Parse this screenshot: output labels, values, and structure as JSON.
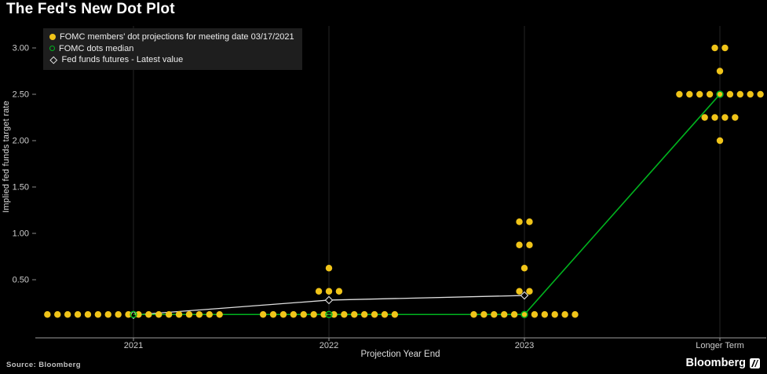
{
  "header": {
    "title": "The Fed's New Dot Plot"
  },
  "legend": [
    {
      "label": "FOMC members' dot projections for meeting date 03/17/2021",
      "marker": "filled-dot",
      "color": "#F0C419"
    },
    {
      "label": "FOMC dots median",
      "marker": "hollow-circle",
      "color": "#00B31E"
    },
    {
      "label": "Fed funds futures - Latest value",
      "marker": "hollow-diamond",
      "color": "#E0E0E0"
    }
  ],
  "axes": {
    "xlabel": "Projection Year End",
    "ylabel": "Implied fed funds target rate"
  },
  "footer": {
    "source": "Source: Bloomberg",
    "brand": "Bloomberg"
  },
  "chart_data": {
    "type": "scatter",
    "title": "The Fed's New Dot Plot",
    "meeting_date": "03/17/2021",
    "xlabel": "Projection Year End",
    "ylabel": "Implied fed funds target rate",
    "categories": [
      "2021",
      "2022",
      "2023",
      "Longer Term"
    ],
    "ylim": [
      0,
      3.3
    ],
    "yticks": [
      0.5,
      1.0,
      1.5,
      2.0,
      2.5,
      3.0
    ],
    "grid": false,
    "legend_position": "top-left",
    "background": "#000000",
    "series": [
      {
        "name": "FOMC members' dot projections for meeting date 03/17/2021",
        "type": "dots",
        "color": "#F0C419",
        "clusters": [
          {
            "category": "2021",
            "value": 0.125,
            "count": 18
          },
          {
            "category": "2022",
            "value": 0.125,
            "count": 14
          },
          {
            "category": "2022",
            "value": 0.375,
            "count": 3
          },
          {
            "category": "2022",
            "value": 0.625,
            "count": 1
          },
          {
            "category": "2023",
            "value": 0.125,
            "count": 11
          },
          {
            "category": "2023",
            "value": 0.375,
            "count": 2
          },
          {
            "category": "2023",
            "value": 0.625,
            "count": 1
          },
          {
            "category": "2023",
            "value": 0.875,
            "count": 2
          },
          {
            "category": "2023",
            "value": 1.125,
            "count": 2
          },
          {
            "category": "Longer Term",
            "value": 2.0,
            "count": 1
          },
          {
            "category": "Longer Term",
            "value": 2.25,
            "count": 4
          },
          {
            "category": "Longer Term",
            "value": 2.5,
            "count": 9
          },
          {
            "category": "Longer Term",
            "value": 2.75,
            "count": 1
          },
          {
            "category": "Longer Term",
            "value": 3.0,
            "count": 2
          }
        ]
      },
      {
        "name": "FOMC dots median",
        "type": "line",
        "marker": "hollow-circle",
        "color": "#00B31E",
        "x": [
          "2021",
          "2022",
          "2023",
          "Longer Term"
        ],
        "values": [
          0.125,
          0.125,
          0.125,
          2.5
        ]
      },
      {
        "name": "Fed funds futures - Latest value",
        "type": "line",
        "marker": "hollow-diamond",
        "color": "#E0E0E0",
        "x": [
          "2021",
          "2022",
          "2023"
        ],
        "values": [
          0.12,
          0.28,
          0.33
        ]
      }
    ]
  }
}
